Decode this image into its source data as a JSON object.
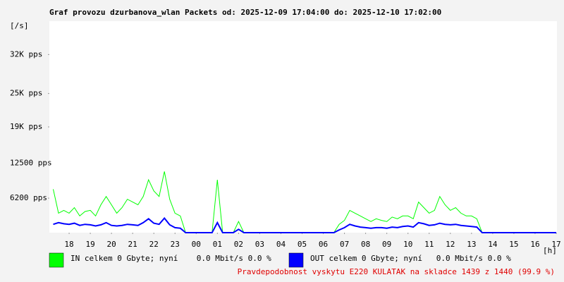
{
  "chart_data": {
    "type": "line",
    "title": "Graf provozu dzurbanova_wlan Packets od: 2025-12-09 17:04:00 do: 2025-12-10 17:02:00",
    "y_unit_label": "[/s]",
    "x_unit_label": "[h]",
    "note": "Pravdepodobnost vyskytu E220 KULATAK na skladce 1439 z 1440 (99.9 %)",
    "xlim": [
      17.0667,
      41.0333
    ],
    "ylim": [
      0,
      38000
    ],
    "xticks": [
      {
        "value": 18,
        "label": "18"
      },
      {
        "value": 19,
        "label": "19"
      },
      {
        "value": 20,
        "label": "20"
      },
      {
        "value": 21,
        "label": "21"
      },
      {
        "value": 22,
        "label": "22"
      },
      {
        "value": 23,
        "label": "23"
      },
      {
        "value": 24,
        "label": "00"
      },
      {
        "value": 25,
        "label": "01"
      },
      {
        "value": 26,
        "label": "02"
      },
      {
        "value": 27,
        "label": "03"
      },
      {
        "value": 28,
        "label": "04"
      },
      {
        "value": 29,
        "label": "05"
      },
      {
        "value": 30,
        "label": "06"
      },
      {
        "value": 31,
        "label": "07"
      },
      {
        "value": 32,
        "label": "08"
      },
      {
        "value": 33,
        "label": "09"
      },
      {
        "value": 34,
        "label": "10"
      },
      {
        "value": 35,
        "label": "11"
      },
      {
        "value": 36,
        "label": "12"
      },
      {
        "value": 37,
        "label": "13"
      },
      {
        "value": 38,
        "label": "14"
      },
      {
        "value": 39,
        "label": "15"
      },
      {
        "value": 40,
        "label": "16"
      },
      {
        "value": 41,
        "label": "17"
      }
    ],
    "yticks": [
      {
        "value": 6200,
        "label": "6200 pps"
      },
      {
        "value": 12500,
        "label": "12500 pps"
      },
      {
        "value": 19000,
        "label": "19K pps"
      },
      {
        "value": 25000,
        "label": "25K pps"
      },
      {
        "value": 32000,
        "label": "32K pps"
      }
    ],
    "grid": false,
    "x": [
      17.25,
      17.5,
      17.75,
      18,
      18.25,
      18.5,
      18.75,
      19,
      19.25,
      19.5,
      19.75,
      20,
      20.25,
      20.5,
      20.75,
      21,
      21.25,
      21.5,
      21.75,
      22,
      22.25,
      22.5,
      22.75,
      23,
      23.25,
      23.5,
      23.75,
      24,
      24.25,
      24.5,
      24.75,
      25,
      25.25,
      25.5,
      25.75,
      26,
      26.25,
      26.5,
      26.75,
      27,
      27.25,
      27.5,
      27.75,
      28,
      28.25,
      28.5,
      28.75,
      29,
      29.25,
      29.5,
      29.75,
      30,
      30.25,
      30.5,
      30.75,
      31,
      31.25,
      31.5,
      31.75,
      32,
      32.25,
      32.5,
      32.75,
      33,
      33.25,
      33.5,
      33.75,
      34,
      34.25,
      34.5,
      34.75,
      35,
      35.25,
      35.5,
      35.75,
      36,
      36.25,
      36.5,
      36.75,
      37,
      37.25,
      37.5,
      37.75,
      38,
      38.25,
      38.5,
      38.75,
      39,
      39.25,
      39.5,
      39.75,
      40,
      40.25,
      40.5,
      40.75,
      41
    ],
    "series": [
      {
        "name": "IN celkem 0 Gbyte; nyní    0.0 Mbit/s 0.0 %",
        "color": "#00ff00",
        "values": [
          7800,
          3500,
          4000,
          3500,
          4500,
          3000,
          3800,
          4000,
          3000,
          5000,
          6500,
          5000,
          3500,
          4500,
          6000,
          5500,
          5000,
          6500,
          9500,
          7500,
          6500,
          11000,
          6000,
          3500,
          3000,
          0,
          0,
          0,
          0,
          0,
          0,
          9500,
          0,
          0,
          0,
          2000,
          0,
          0,
          0,
          0,
          0,
          0,
          0,
          0,
          0,
          0,
          0,
          0,
          0,
          0,
          0,
          0,
          0,
          0,
          1500,
          2200,
          4000,
          3500,
          3000,
          2500,
          2000,
          2500,
          2200,
          2000,
          2800,
          2500,
          3000,
          3000,
          2500,
          5500,
          4500,
          3500,
          4000,
          6500,
          5000,
          4000,
          4500,
          3500,
          3000,
          3000,
          2500,
          0,
          0,
          0,
          0,
          0,
          0,
          0,
          0,
          0,
          0,
          0,
          0,
          0,
          0,
          0
        ]
      },
      {
        "name": "OUT celkem 0 Gbyte; nyní   0.0 Mbit/s 0.0 %",
        "color": "#0000ff",
        "values": [
          1500,
          1800,
          1600,
          1500,
          1700,
          1300,
          1500,
          1400,
          1200,
          1400,
          1800,
          1300,
          1200,
          1300,
          1500,
          1400,
          1300,
          1800,
          2500,
          1700,
          1500,
          2600,
          1400,
          900,
          800,
          0,
          0,
          0,
          0,
          0,
          0,
          1800,
          0,
          0,
          0,
          600,
          0,
          0,
          0,
          0,
          0,
          0,
          0,
          0,
          0,
          0,
          0,
          0,
          0,
          0,
          0,
          0,
          0,
          0,
          500,
          900,
          1500,
          1200,
          1000,
          900,
          800,
          900,
          900,
          800,
          1000,
          900,
          1100,
          1200,
          1000,
          1800,
          1600,
          1300,
          1400,
          1700,
          1500,
          1400,
          1500,
          1300,
          1200,
          1100,
          1000,
          0,
          0,
          0,
          0,
          0,
          0,
          0,
          0,
          0,
          0,
          0,
          0,
          0,
          0,
          0
        ]
      }
    ]
  }
}
